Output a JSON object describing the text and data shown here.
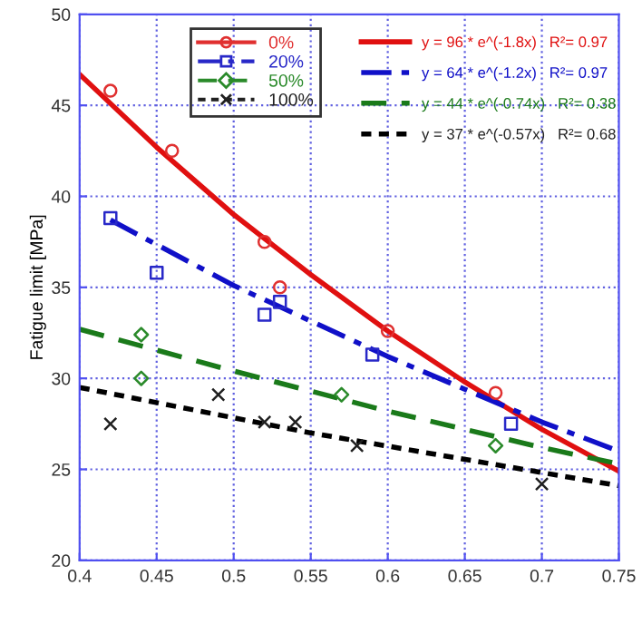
{
  "chart_data": {
    "type": "scatter",
    "ylabel": "Fatigue limit [MPa]",
    "xlim": [
      0.4,
      0.75
    ],
    "ylim": [
      20,
      50
    ],
    "xticks": [
      0.4,
      0.45,
      0.5,
      0.55,
      0.6,
      0.65,
      0.7,
      0.75
    ],
    "yticks": [
      20,
      25,
      30,
      35,
      40,
      45,
      50
    ],
    "grid": true,
    "legend": "top",
    "series": [
      {
        "name": "0%",
        "color": "#e03030",
        "marker": "circle",
        "line_style": "solid",
        "x": [
          0.42,
          0.46,
          0.52,
          0.53,
          0.6,
          0.67
        ],
        "values": [
          45.8,
          42.5,
          37.5,
          35.0,
          32.6,
          29.2
        ]
      },
      {
        "name": "20%",
        "color": "#2828c8",
        "marker": "square",
        "line_style": "dashdot",
        "x": [
          0.42,
          0.45,
          0.52,
          0.53,
          0.59,
          0.68
        ],
        "values": [
          38.8,
          35.8,
          33.5,
          34.2,
          31.3,
          27.5
        ]
      },
      {
        "name": "50%",
        "color": "#2a8a2a",
        "marker": "diamond",
        "line_style": "dashed",
        "x": [
          0.44,
          0.44,
          0.57,
          0.67
        ],
        "values": [
          32.4,
          30.0,
          29.1,
          26.3
        ]
      },
      {
        "name": "100%",
        "color": "#202020",
        "marker": "cross",
        "line_style": "dotted",
        "x": [
          0.42,
          0.49,
          0.52,
          0.54,
          0.58,
          0.7
        ],
        "values": [
          27.5,
          29.1,
          27.6,
          27.6,
          26.3,
          24.2
        ]
      },
      {
        "type": "line",
        "name": "y = 96 * e^(-1.8x)   R²= 0.97",
        "color": "#e01010",
        "line_style": "solid",
        "x": [
          0.4,
          0.45,
          0.5,
          0.55,
          0.6,
          0.65,
          0.7,
          0.75
        ],
        "values": [
          46.7,
          42.7,
          39.0,
          35.7,
          32.6,
          29.8,
          27.2,
          24.9
        ]
      },
      {
        "type": "line",
        "name": "y = 64 * e^(-1.2x)   R²= 0.97",
        "color": "#1010c8",
        "line_style": "dashdot",
        "x": [
          0.42,
          0.5,
          0.6,
          0.7,
          0.75
        ],
        "values": [
          38.7,
          35.1,
          31.2,
          27.6,
          26.0
        ]
      },
      {
        "type": "line",
        "name": "y = 44 * e^(-0.74x)   R²= 0.38",
        "color": "#1a7a1a",
        "line_style": "dashed",
        "x": [
          0.4,
          0.5,
          0.6,
          0.7,
          0.75
        ],
        "values": [
          32.7,
          30.4,
          28.2,
          26.2,
          25.3
        ]
      },
      {
        "type": "line",
        "name": "y = 37 * e^(-0.57x)   R²= 0.68",
        "color": "#000000",
        "line_style": "dotted",
        "x": [
          0.4,
          0.55,
          0.75
        ],
        "values": [
          29.5,
          27.0,
          24.1
        ]
      }
    ]
  }
}
